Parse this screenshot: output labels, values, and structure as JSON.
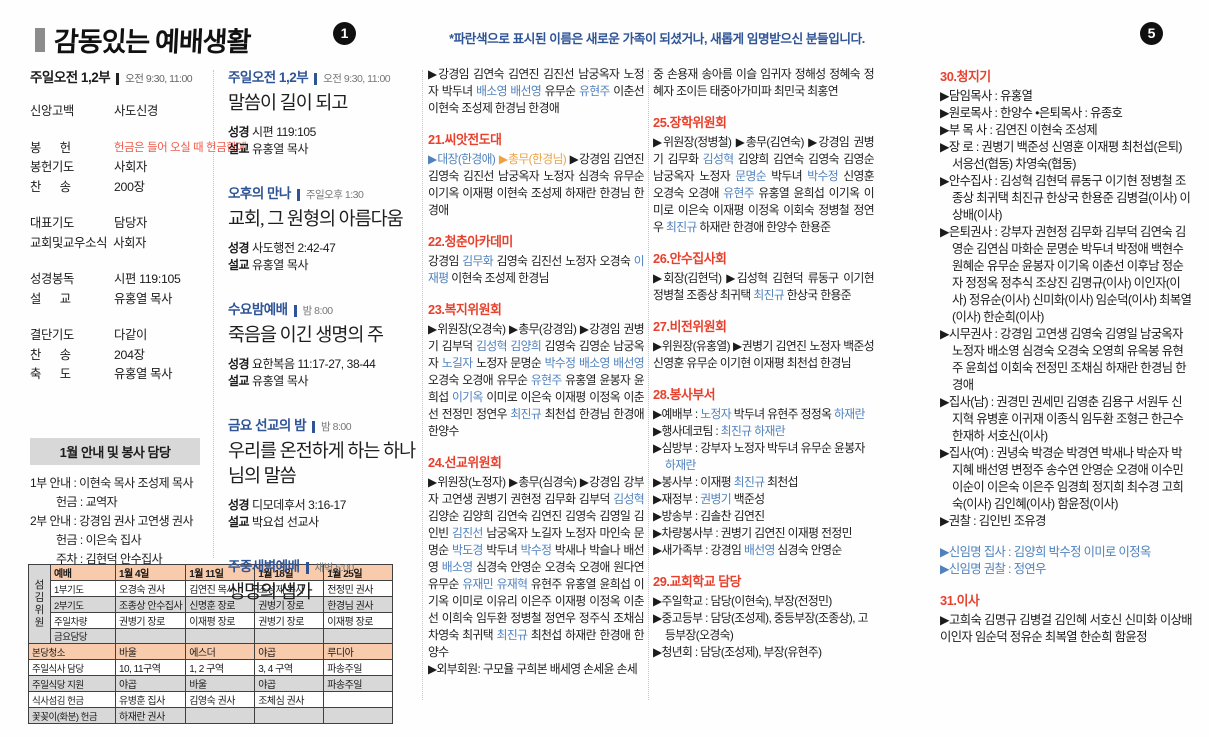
{
  "header": {
    "title": "감동있는 예배생활",
    "page_left": "1",
    "page_right": "5",
    "notice": "*파란색으로 표시된 이름은 새로운 가족이 되셨거나, 새롭게 임명받으신 분들입니다."
  },
  "order": {
    "title": "주일오전 1,2부",
    "time": "오전 9:30, 11:00",
    "groups": [
      [
        {
          "label": "신앙고백",
          "value": "사도신경"
        }
      ],
      [
        {
          "label": "봉      헌",
          "value": "헌금은 들어 오실 때 헌금함에"
        },
        {
          "label": "봉헌기도",
          "value": "사회자"
        },
        {
          "label": "찬      송",
          "value": "200장"
        }
      ],
      [
        {
          "label": "대표기도",
          "value": "담당자"
        },
        {
          "label": "교회및교우소식",
          "value": "사회자"
        }
      ],
      [
        {
          "label": "성경봉독",
          "value": "시편 119:105"
        },
        {
          "label": "설      교",
          "value": "유홍열 목사"
        }
      ],
      [
        {
          "label": "결단기도",
          "value": "다같이"
        },
        {
          "label": "찬      송",
          "value": "204장"
        },
        {
          "label": "축      도",
          "value": "유홍열 목사"
        }
      ]
    ]
  },
  "guide": {
    "title": "1월 안내 및 봉사 담당",
    "lines": [
      "1부 안내 : 이현숙 목사 조성제 목사",
      "헌금 : 교역자",
      "2부 안내 : 강경임 권사 고연생 권사",
      "헌금 : 이은숙 집사",
      "주차 : 김현덕 안수집사"
    ]
  },
  "duty_table": {
    "group_label": "섬김위원",
    "headers": [
      "예배",
      "1월 4일",
      "1월 11일",
      "1월 18일",
      "1월 25일"
    ],
    "rows": [
      {
        "label": "1부기도",
        "cells": [
          "오경숙 권사",
          "김연진 목사",
          "조성제 목사",
          "전정민 권사"
        ]
      },
      {
        "label": "2부기도",
        "cells": [
          "조종상 안수집사",
          "신명훈 장로",
          "권병기 장로",
          "한경님 권사"
        ]
      },
      {
        "label": "주일차량",
        "cells": [
          "권병기 장로",
          "이재평 장로",
          "권병기 장로",
          "이재평 장로"
        ]
      },
      {
        "label": "금요담당",
        "cells": [
          "",
          "",
          "",
          ""
        ]
      },
      {
        "label": "본당청소",
        "cells": [
          "바울",
          "에스더",
          "야곱",
          "루디아"
        ]
      },
      {
        "label": "주일식사 담당",
        "cells": [
          "10, 11구역",
          "1, 2 구역",
          "3, 4 구역",
          "파송주일"
        ]
      },
      {
        "label": "주일식당 지원",
        "cells": [
          "야곱",
          "바울",
          "야곱",
          "파송주일"
        ]
      },
      {
        "label": "식사섬김 헌금",
        "cells": [
          "유병훈 집사",
          "김영숙 권사",
          "조체심 권사",
          ""
        ]
      },
      {
        "label": "꽃꽂이(화분) 헌금",
        "cells": [
          "하재란 권사",
          "",
          "",
          ""
        ]
      }
    ]
  },
  "labels": {
    "scripture": "성경",
    "preacher": "설교"
  },
  "services": [
    {
      "name": "주일오전 1,2부",
      "time": "오전 9:30, 11:00",
      "sermon": "말씀이 길이 되고",
      "scripture": "시편 119:105",
      "preacher": "유홍열 목사"
    },
    {
      "name": "오후의 만나",
      "time": "주일오후 1:30",
      "sermon": "교회, 그 원형의 아름다움",
      "scripture": "사도행전 2:42-47",
      "preacher": "유홍열 목사"
    },
    {
      "name": "수요밤예배",
      "time": "밤 8:00",
      "sermon": "죽음을 이긴 생명의 주",
      "scripture": "요한복음 11:17-27, 38-44",
      "preacher": "유홍열 목사"
    },
    {
      "name": "금요 선교의 밤",
      "time": "밤 8:00",
      "sermon": "우리를 온전하게 하는 하나님의 말씀",
      "scripture": "디모데후서 3:16-17",
      "preacher": "박요섭 선교사"
    },
    {
      "name": "주중새벽예배",
      "time": "새벽 5:00",
      "sermon": "생명의 샘가"
    }
  ],
  "col3": {
    "p1": [
      {
        "t": "▶강경임 김연숙 김연진 김진선 남궁옥자 노정자 박두녀 "
      },
      {
        "t": "배소영 배선영",
        "c": "b"
      },
      {
        "t": " 유무순 "
      },
      {
        "t": "유현주",
        "c": "b"
      },
      {
        "t": " 이춘선 이현숙 조성제 한경님 한경애"
      }
    ],
    "s21": {
      "title": "21.씨앗전도대",
      "body": [
        {
          "t": "▶대장(한경애)",
          "c": "b"
        },
        {
          "t": " "
        },
        {
          "t": "▶총무(한경님)",
          "c": "o"
        },
        {
          "t": " ▶강경임 김연진 김영숙 김진선 남궁옥자 노정자 심경숙 유무순 이기옥 이재평 이현숙 조성제 하재란 한경님 한경애"
        }
      ]
    },
    "s22": {
      "title": "22.청춘아카데미",
      "body": [
        {
          "t": "강경임 "
        },
        {
          "t": "김무화",
          "c": "b"
        },
        {
          "t": " 김영숙 김진선 노정자 오경숙 "
        },
        {
          "t": "이재평",
          "c": "b"
        },
        {
          "t": " 이현숙 조성제 한경님"
        }
      ]
    },
    "s23": {
      "title": "23.복지위원회",
      "body": [
        {
          "t": "▶위원장(오경숙) ▶총무(강경임) ▶강경임 권병기 김부덕 "
        },
        {
          "t": "김성혁 김양희",
          "c": "b"
        },
        {
          "t": " 김영숙 김영순 남궁옥자 "
        },
        {
          "t": "노길자",
          "c": "b"
        },
        {
          "t": " 노정자 문명순 "
        },
        {
          "t": "박수정 배소영 배선영",
          "c": "b"
        },
        {
          "t": " 오경숙 오경애 유무순 "
        },
        {
          "t": "유현주",
          "c": "b"
        },
        {
          "t": " 유홍열 윤봉자 윤희섭 "
        },
        {
          "t": "이기옥",
          "c": "b"
        },
        {
          "t": " 이미로 이은숙 이재평 이정옥 이춘선 전정민 정연우 "
        },
        {
          "t": "최진규",
          "c": "b"
        },
        {
          "t": " 최천섭 한경님 한경애 한양수"
        }
      ]
    },
    "s24": {
      "title": "24.선교위원회",
      "body": [
        {
          "t": "▶위원장(노정자) ▶총무(심경숙) ▶강경임 강부자 고연생 권병기 권현정 김무화 김부덕 "
        },
        {
          "t": "김성혁",
          "c": "b"
        },
        {
          "t": " 김양순 김양희 김연숙 김연진 김영숙 김영일 김인빈 "
        },
        {
          "t": "김진선",
          "c": "b"
        },
        {
          "t": " 남궁옥자 노길자 노정자 마인숙 문명순 "
        },
        {
          "t": "박도경",
          "c": "b"
        },
        {
          "t": " 박두녀 "
        },
        {
          "t": "박수정",
          "c": "b"
        },
        {
          "t": " 박새나 박슬나 배선영 "
        },
        {
          "t": "배소영",
          "c": "b"
        },
        {
          "t": " 심경숙 안영순 오경숙 오경애 원다연 유무순 "
        },
        {
          "t": "유재민 유재혁",
          "c": "b"
        },
        {
          "t": " 유현주 유홍열 윤희섭 이기옥 이미로 이유리 이은주 이재평 이정옥 이춘선 이희숙 임두환 정병철 정연우 정주식 조채심 차영숙 최귀택 "
        },
        {
          "t": "최진규",
          "c": "b"
        },
        {
          "t": " 최천섭 하재란 한경애 한양수"
        }
      ],
      "external": [
        {
          "t": "▶외부회원: 구모율 구희본 배세영 손세윤 손세"
        }
      ]
    }
  },
  "col4": {
    "cont": [
      {
        "t": "중 손용재 송아름 이슬 임귀자 정해성 정혜숙 정혜자 조이든 태중아가미파 최민국 최홍연"
      }
    ],
    "s25": {
      "title": "25.장학위원회",
      "body": [
        {
          "t": "▶위원장(정병철) ▶총무(김연숙) ▶강경임 권병기 김무화 "
        },
        {
          "t": "김성혁",
          "c": "b"
        },
        {
          "t": " 김양희 김연숙 김영숙 김영순 남궁옥자 노정자 "
        },
        {
          "t": "문명순",
          "c": "b"
        },
        {
          "t": " 박두녀 "
        },
        {
          "t": "박수정",
          "c": "b"
        },
        {
          "t": " 신영훈 오경숙 오경애 "
        },
        {
          "t": "유현주",
          "c": "b"
        },
        {
          "t": " 유홍열 윤희섭 이기옥 이미로 이은숙 이재평 이정옥 이회숙 정병철 정연우 "
        },
        {
          "t": "최진규",
          "c": "b"
        },
        {
          "t": " 하재란 한경애 한양수 한용준"
        }
      ]
    },
    "s26": {
      "title": "26.안수집사회",
      "body": [
        {
          "t": "▶회장(김현덕) ▶김성혁 김현덕 류동구 이기현 정병철 조종상 최귀택 "
        },
        {
          "t": "최진규",
          "c": "b"
        },
        {
          "t": " 한상국 한용준"
        }
      ]
    },
    "s27": {
      "title": "27.비전위원회",
      "body": [
        {
          "t": "▶위원장(유홍열) ▶권병기 김연진 노정자 백준성 신영훈 유무순 이기현 이재평 최천섭 한경님"
        }
      ]
    },
    "s28": {
      "title": "28.봉사부서",
      "lines": [
        [
          {
            "t": "▶예배부 : "
          },
          {
            "t": "노정자",
            "c": "b"
          },
          {
            "t": " 박두녀 유현주 정정옥 "
          },
          {
            "t": "하재란",
            "c": "b"
          }
        ],
        [
          {
            "t": "▶행사데코팀 : "
          },
          {
            "t": "최진규 하재란",
            "c": "b"
          }
        ],
        [
          {
            "t": "▶심방부 : 강부자 노정자 박두녀 유무순 윤봉자 "
          },
          {
            "t": "하재란",
            "c": "b"
          }
        ],
        [
          {
            "t": "▶봉사부 : 이재평 "
          },
          {
            "t": "최진규",
            "c": "b"
          },
          {
            "t": " 최천섭"
          }
        ],
        [
          {
            "t": "▶재정부 : "
          },
          {
            "t": "권병기",
            "c": "b"
          },
          {
            "t": " 백준성"
          }
        ],
        [
          {
            "t": "▶방송부 : 김솔찬 김연진"
          }
        ],
        [
          {
            "t": "▶차량봉사부 : 권병기 김연진 이재평 전정민"
          }
        ],
        [
          {
            "t": "▶새가족부 : 강경임 "
          },
          {
            "t": "배선영",
            "c": "b"
          },
          {
            "t": " 심경숙 안영순"
          }
        ]
      ]
    },
    "s29": {
      "title": "29.교회학교 담당",
      "lines": [
        [
          {
            "t": "▶주일학교 : 담당(이현숙), 부장(전정민)"
          }
        ],
        [
          {
            "t": "▶중고등부 : 담당(조성제), 중등부장(조종상), 고등부장(오경숙)"
          }
        ],
        [
          {
            "t": "▶청년회 : 담당(조성제), 부장(유현주)"
          }
        ]
      ]
    }
  },
  "col5": {
    "s30": {
      "title": "30.청지기",
      "lines": [
        [
          {
            "t": "▶담임목사 : 유홍열"
          }
        ],
        [
          {
            "t": "▶원로목사 : 한양수  •은퇴목사 : 유종호"
          }
        ],
        [
          {
            "t": "▶부 목 사 : 김연진 이현숙 조성제"
          }
        ],
        [
          {
            "t": "▶장    로 : 권병기 백준성 신영훈 이재평 최천섭(은퇴) 서응선(협동) 차영숙(협동)"
          }
        ],
        [
          {
            "t": "▶안수집사 : 김성혁 김현덕 류동구 이기현 정병철 조종상 최귀택 최진규 한상국 한용준 김병걸(이사) 이상배(이사)"
          }
        ],
        [
          {
            "t": "▶은퇴권사 : 강부자 권현정 김무화 김부덕 김연숙 김영순 김연심 마화순 문명순 박두녀 박정애 백현수 원혜순 유무순 윤봉자 이기옥 이춘선 이후남 정순자 정정옥 정추식 조상진 김명규(이사) 이인자(이사) 정유순(이사) 신미화(이사) 임순덕(이사) 최복열(이사) 한순희(이사)"
          }
        ],
        [
          {
            "t": "▶시무권사 : 강경임 고연생 김영숙 김영일 남궁옥자 노정자 배소영 심경숙 오경숙 오영희 유옥봉 유현주 윤희섭 이회숙 전정민 조채심 하재란 한경님 한경애"
          }
        ],
        [
          {
            "t": "▶집사(남) : 권경민 권세민 김영춘 김용구 서원두 신지혁 유병훈 이귀재 이종식 임두환 조형근 한근수 한재하 서호신(이사)"
          }
        ],
        [
          {
            "t": "▶집사(여) : 권녕숙 박경순 박경연 박새나 박순자 박지혜 배선영 변정주 송수연 안영순 오경애 이수민 이순이 이은숙 이은주 임경희 정지희 최수경 고희숙(이사) 김인혜(이사) 함윤정(이사)"
          }
        ],
        [
          {
            "t": "▶권찰 : 김인빈 조유경"
          }
        ]
      ],
      "new_deacons": "▶신임명 집사 : 김양희 박수정 이미로 이정옥",
      "new_kwonchal": "▶신임명 권찰 : 정연우"
    },
    "s31": {
      "title": "31.이사",
      "body": [
        {
          "t": "▶고희숙 김명규 김병걸 김인혜 서호신 신미화 이상배 이인자 임순덕 정유순 최복열 한순희 함윤정"
        }
      ]
    }
  }
}
